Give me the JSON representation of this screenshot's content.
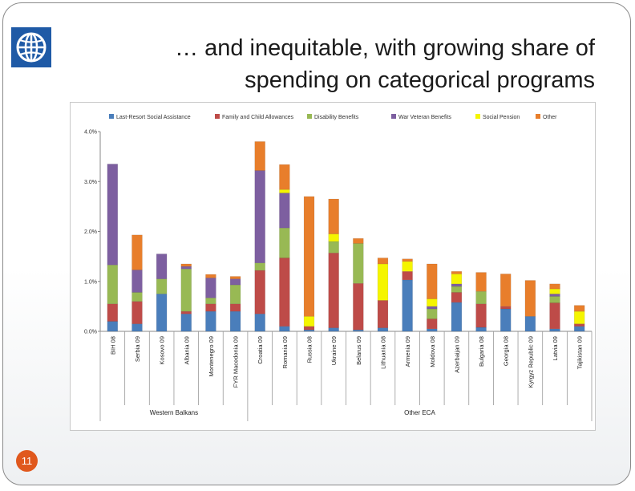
{
  "slide": {
    "title_line1": "… and inequitable, with growing share of",
    "title_line2": "spending on categorical programs",
    "page_number": "11"
  },
  "chart_data": {
    "type": "bar",
    "stacked": true,
    "title": "",
    "xlabel": "",
    "ylabel": "",
    "ylim": [
      0,
      4
    ],
    "yticks": [
      "0.0%",
      "1.0%",
      "2.0%",
      "3.0%",
      "4.0%"
    ],
    "grid": false,
    "legend_position": "top",
    "categories": [
      "BIH 08",
      "Serbia 09",
      "Kosovo 09",
      "Albania 09",
      "Montenegro 09",
      "FYR Macedonia 09",
      "Croatia 09",
      "Romania 09",
      "Russia 08",
      "Ukraine 09",
      "Belarus 09",
      "Lithuania 08",
      "Armenia 09",
      "Moldova 08",
      "Azerbaijan 09",
      "Bulgaria 08",
      "Georgia 08",
      "Kyrgyz Republic 09",
      "Latvia 09",
      "Tajikistan 09"
    ],
    "groups": [
      {
        "label": "Western Balkans",
        "count": 6
      },
      {
        "label": "Other ECA",
        "count": 14
      }
    ],
    "series": [
      {
        "name": "Last-Resort Social Assistance",
        "color": "#4a7ebb",
        "values": [
          0.2,
          0.15,
          0.75,
          0.35,
          0.4,
          0.4,
          0.35,
          0.1,
          0.03,
          0.07,
          0.03,
          0.07,
          1.03,
          0.05,
          0.58,
          0.08,
          0.45,
          0.3,
          0.05,
          0.1
        ]
      },
      {
        "name": "Family and Child Allowances",
        "color": "#be4b48",
        "values": [
          0.35,
          0.45,
          0.0,
          0.05,
          0.15,
          0.15,
          0.87,
          1.37,
          0.07,
          1.5,
          0.93,
          0.55,
          0.17,
          0.2,
          0.2,
          0.47,
          0.05,
          0.0,
          0.52,
          0.05
        ]
      },
      {
        "name": "Disability Benefits",
        "color": "#98b954",
        "values": [
          0.78,
          0.18,
          0.3,
          0.85,
          0.12,
          0.38,
          0.15,
          0.6,
          0.0,
          0.23,
          0.8,
          0.0,
          0.0,
          0.2,
          0.12,
          0.25,
          0.0,
          0.0,
          0.13,
          0.0
        ]
      },
      {
        "name": "War Veteran Benefits",
        "color": "#7d5fa0",
        "values": [
          2.02,
          0.45,
          0.5,
          0.05,
          0.4,
          0.12,
          1.85,
          0.7,
          0.0,
          0.0,
          0.0,
          0.0,
          0.0,
          0.05,
          0.05,
          0.0,
          0.0,
          0.0,
          0.05,
          0.0
        ]
      },
      {
        "name": "Social Pension",
        "color": "#f5f500",
        "values": [
          0.0,
          0.0,
          0.0,
          0.0,
          0.0,
          0.0,
          0.0,
          0.07,
          0.2,
          0.15,
          0.0,
          0.73,
          0.2,
          0.15,
          0.2,
          0.0,
          0.0,
          0.0,
          0.1,
          0.25
        ]
      },
      {
        "name": "Other",
        "color": "#e87e2b",
        "values": [
          0.0,
          0.7,
          0.0,
          0.05,
          0.07,
          0.05,
          0.58,
          0.5,
          2.4,
          0.7,
          0.1,
          0.12,
          0.05,
          0.7,
          0.05,
          0.38,
          0.65,
          0.72,
          0.1,
          0.12
        ]
      }
    ]
  },
  "colors": {
    "page_badge": "#e0581d",
    "logo_blue": "#1f5aa6"
  },
  "icons": {
    "logo": "world-bank-globe-icon"
  }
}
